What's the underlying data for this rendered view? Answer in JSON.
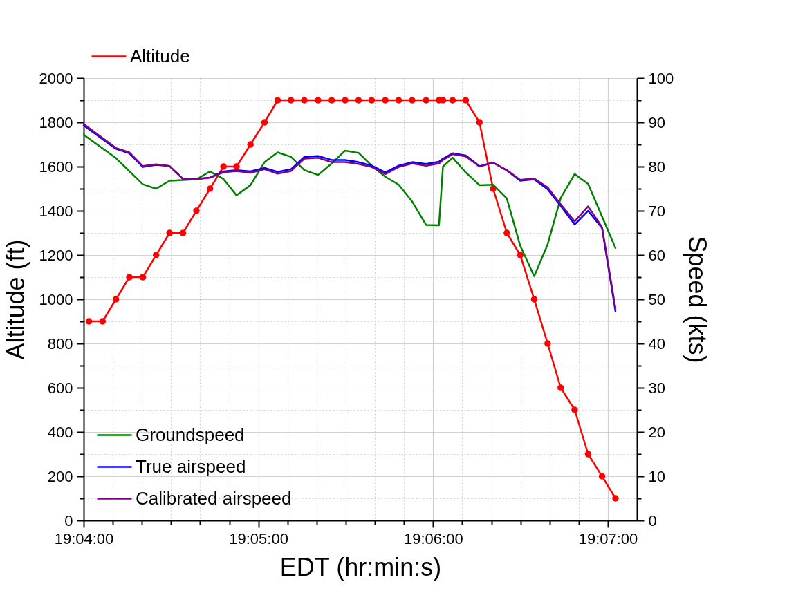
{
  "chart_data": {
    "type": "line",
    "xlabel": "EDT (hr:min:s)",
    "ylabel": "Altitude (ft)",
    "y2label": "Speed (kts)",
    "xlim": [
      19.06667,
      19.11944
    ],
    "xticks": [
      {
        "value": 19.06667,
        "label": "19:04:00"
      },
      {
        "value": 19.06944,
        "label": null
      },
      {
        "value": 19.07222,
        "label": null
      },
      {
        "value": 19.075,
        "label": null
      },
      {
        "value": 19.07778,
        "label": null
      },
      {
        "value": 19.08056,
        "label": null
      },
      {
        "value": 19.08333,
        "label": "19:05:00"
      },
      {
        "value": 19.08611,
        "label": null
      },
      {
        "value": 19.08889,
        "label": null
      },
      {
        "value": 19.09167,
        "label": null
      },
      {
        "value": 19.09444,
        "label": null
      },
      {
        "value": 19.09722,
        "label": null
      },
      {
        "value": 19.1,
        "label": "19:06:00"
      },
      {
        "value": 19.10278,
        "label": null
      },
      {
        "value": 19.10556,
        "label": null
      },
      {
        "value": 19.10833,
        "label": null
      },
      {
        "value": 19.11111,
        "label": null
      },
      {
        "value": 19.11389,
        "label": null
      },
      {
        "value": 19.11667,
        "label": "19:07:00"
      }
    ],
    "ylim": [
      0,
      2000
    ],
    "yticks": [
      0,
      {
        "value": 100,
        "label": null
      },
      200,
      {
        "value": 300,
        "label": null
      },
      400,
      {
        "value": 500,
        "label": null
      },
      600,
      {
        "value": 700,
        "label": null
      },
      800,
      {
        "value": 900,
        "label": null
      },
      1000,
      {
        "value": 1100,
        "label": null
      },
      1200,
      {
        "value": 1300,
        "label": null
      },
      1400,
      {
        "value": 1500,
        "label": null
      },
      1600,
      {
        "value": 1700,
        "label": null
      },
      1800,
      {
        "value": 1900,
        "label": null
      },
      2000
    ],
    "y2lim": [
      0,
      100
    ],
    "y2ticks": [
      0,
      {
        "value": 5,
        "label": null
      },
      10,
      {
        "value": 15,
        "label": null
      },
      20,
      {
        "value": 25,
        "label": null
      },
      30,
      {
        "value": 35,
        "label": null
      },
      40,
      {
        "value": 45,
        "label": null
      },
      50,
      {
        "value": 55,
        "label": null
      },
      60,
      {
        "value": 65,
        "label": null
      },
      70,
      {
        "value": 75,
        "label": null
      },
      80,
      {
        "value": 85,
        "label": null
      },
      90,
      {
        "value": 95,
        "label": null
      },
      100
    ],
    "grid": true,
    "legend": "left",
    "line_style": "solid",
    "series": [
      {
        "name": "Altitude",
        "color": "#ff0000",
        "marker": "circle",
        "axis": "y",
        "x": [
          19.06717,
          19.06847,
          19.06975,
          19.07103,
          19.07231,
          19.07358,
          19.07486,
          19.07614,
          19.07742,
          19.07872,
          19.08,
          19.08125,
          19.08258,
          19.08392,
          19.08517,
          19.08644,
          19.08772,
          19.08903,
          19.09033,
          19.09161,
          19.09289,
          19.09414,
          19.09544,
          19.09672,
          19.098,
          19.09933,
          19.10056,
          19.10094,
          19.10186,
          19.10311,
          19.10442,
          19.10572,
          19.10703,
          19.10831,
          19.10964,
          19.11092,
          19.11217,
          19.1135,
          19.11478,
          19.11611,
          19.11739
        ],
        "values": [
          900,
          900,
          1000,
          1100,
          1100,
          1200,
          1300,
          1300,
          1400,
          1500,
          1600,
          1600,
          1700,
          1800,
          1900,
          1900,
          1900,
          1900,
          1900,
          1900,
          1900,
          1900,
          1900,
          1900,
          1900,
          1900,
          1900,
          1900,
          1900,
          1900,
          1800,
          1500,
          1300,
          1200,
          1000,
          800,
          600,
          500,
          300,
          200,
          100
        ]
      },
      {
        "name": "Groundspeed",
        "color": "#008000",
        "axis": "y2",
        "x": [
          19.06667,
          19.06975,
          19.07231,
          19.07358,
          19.07486,
          19.07742,
          19.07872,
          19.08,
          19.08125,
          19.08258,
          19.08392,
          19.08517,
          19.08644,
          19.08772,
          19.08903,
          19.09033,
          19.09161,
          19.09289,
          19.09414,
          19.09544,
          19.09672,
          19.098,
          19.09933,
          19.10056,
          19.10094,
          19.10186,
          19.10311,
          19.10442,
          19.10572,
          19.10703,
          19.10831,
          19.10964,
          19.11092,
          19.11217,
          19.1135,
          19.11478,
          19.11739
        ],
        "values": [
          87.2,
          81.9,
          76.0,
          75.0,
          76.8,
          77.1,
          78.9,
          77.2,
          73.5,
          75.8,
          81.0,
          83.2,
          82.2,
          79.2,
          78.1,
          80.7,
          83.6,
          83.1,
          80.2,
          77.7,
          75.9,
          72.1,
          66.8,
          66.7,
          80.0,
          82.0,
          78.7,
          75.8,
          75.9,
          72.8,
          62.1,
          55.2,
          62.4,
          72.9,
          78.3,
          76.1,
          61.6
        ]
      },
      {
        "name": "True airspeed",
        "color": "#0000ff",
        "axis": "y2",
        "x": [
          19.06667,
          19.06975,
          19.07103,
          19.07231,
          19.07358,
          19.07486,
          19.07614,
          19.07742,
          19.07872,
          19.08,
          19.08125,
          19.08258,
          19.08392,
          19.08517,
          19.08644,
          19.08772,
          19.08903,
          19.09033,
          19.09161,
          19.09289,
          19.09414,
          19.09544,
          19.09672,
          19.098,
          19.09933,
          19.10056,
          19.10094,
          19.10186,
          19.10311,
          19.10442,
          19.10572,
          19.10703,
          19.10831,
          19.10964,
          19.11092,
          19.11217,
          19.1135,
          19.11478,
          19.11611,
          19.11739
        ],
        "values": [
          89.3,
          84.0,
          83.0,
          79.9,
          80.4,
          80.1,
          77.2,
          77.2,
          77.5,
          78.9,
          79.2,
          78.9,
          79.7,
          78.8,
          79.4,
          82.2,
          82.4,
          81.5,
          81.5,
          81.0,
          80.2,
          78.7,
          80.2,
          81.0,
          80.6,
          81.1,
          81.8,
          83.0,
          82.5,
          80.1,
          80.9,
          79.1,
          76.8,
          77.1,
          74.9,
          71.1,
          66.9,
          70.0,
          66.1,
          47.3
        ]
      },
      {
        "name": "Calibrated airspeed",
        "color": "#800080",
        "axis": "y2",
        "x": [
          19.06667,
          19.06975,
          19.07103,
          19.07231,
          19.07358,
          19.07486,
          19.07614,
          19.07742,
          19.07872,
          19.08,
          19.08125,
          19.08258,
          19.08392,
          19.08517,
          19.08644,
          19.08772,
          19.08903,
          19.09033,
          19.09161,
          19.09289,
          19.09414,
          19.09544,
          19.09672,
          19.098,
          19.09933,
          19.10056,
          19.10094,
          19.10186,
          19.10311,
          19.10442,
          19.10572,
          19.10703,
          19.10831,
          19.10964,
          19.11092,
          19.11217,
          19.1135,
          19.11478,
          19.11611,
          19.11739
        ],
        "values": [
          89.6,
          84.2,
          83.2,
          80.1,
          80.5,
          80.1,
          77.2,
          77.2,
          77.5,
          78.7,
          79.0,
          78.6,
          79.4,
          78.4,
          79.0,
          81.8,
          82.0,
          81.0,
          81.0,
          80.6,
          79.9,
          78.3,
          79.9,
          80.7,
          80.2,
          80.7,
          81.5,
          82.8,
          82.3,
          80.0,
          80.9,
          79.2,
          77.0,
          77.3,
          75.3,
          71.5,
          67.6,
          71.0,
          66.3,
          48.0
        ]
      }
    ]
  }
}
